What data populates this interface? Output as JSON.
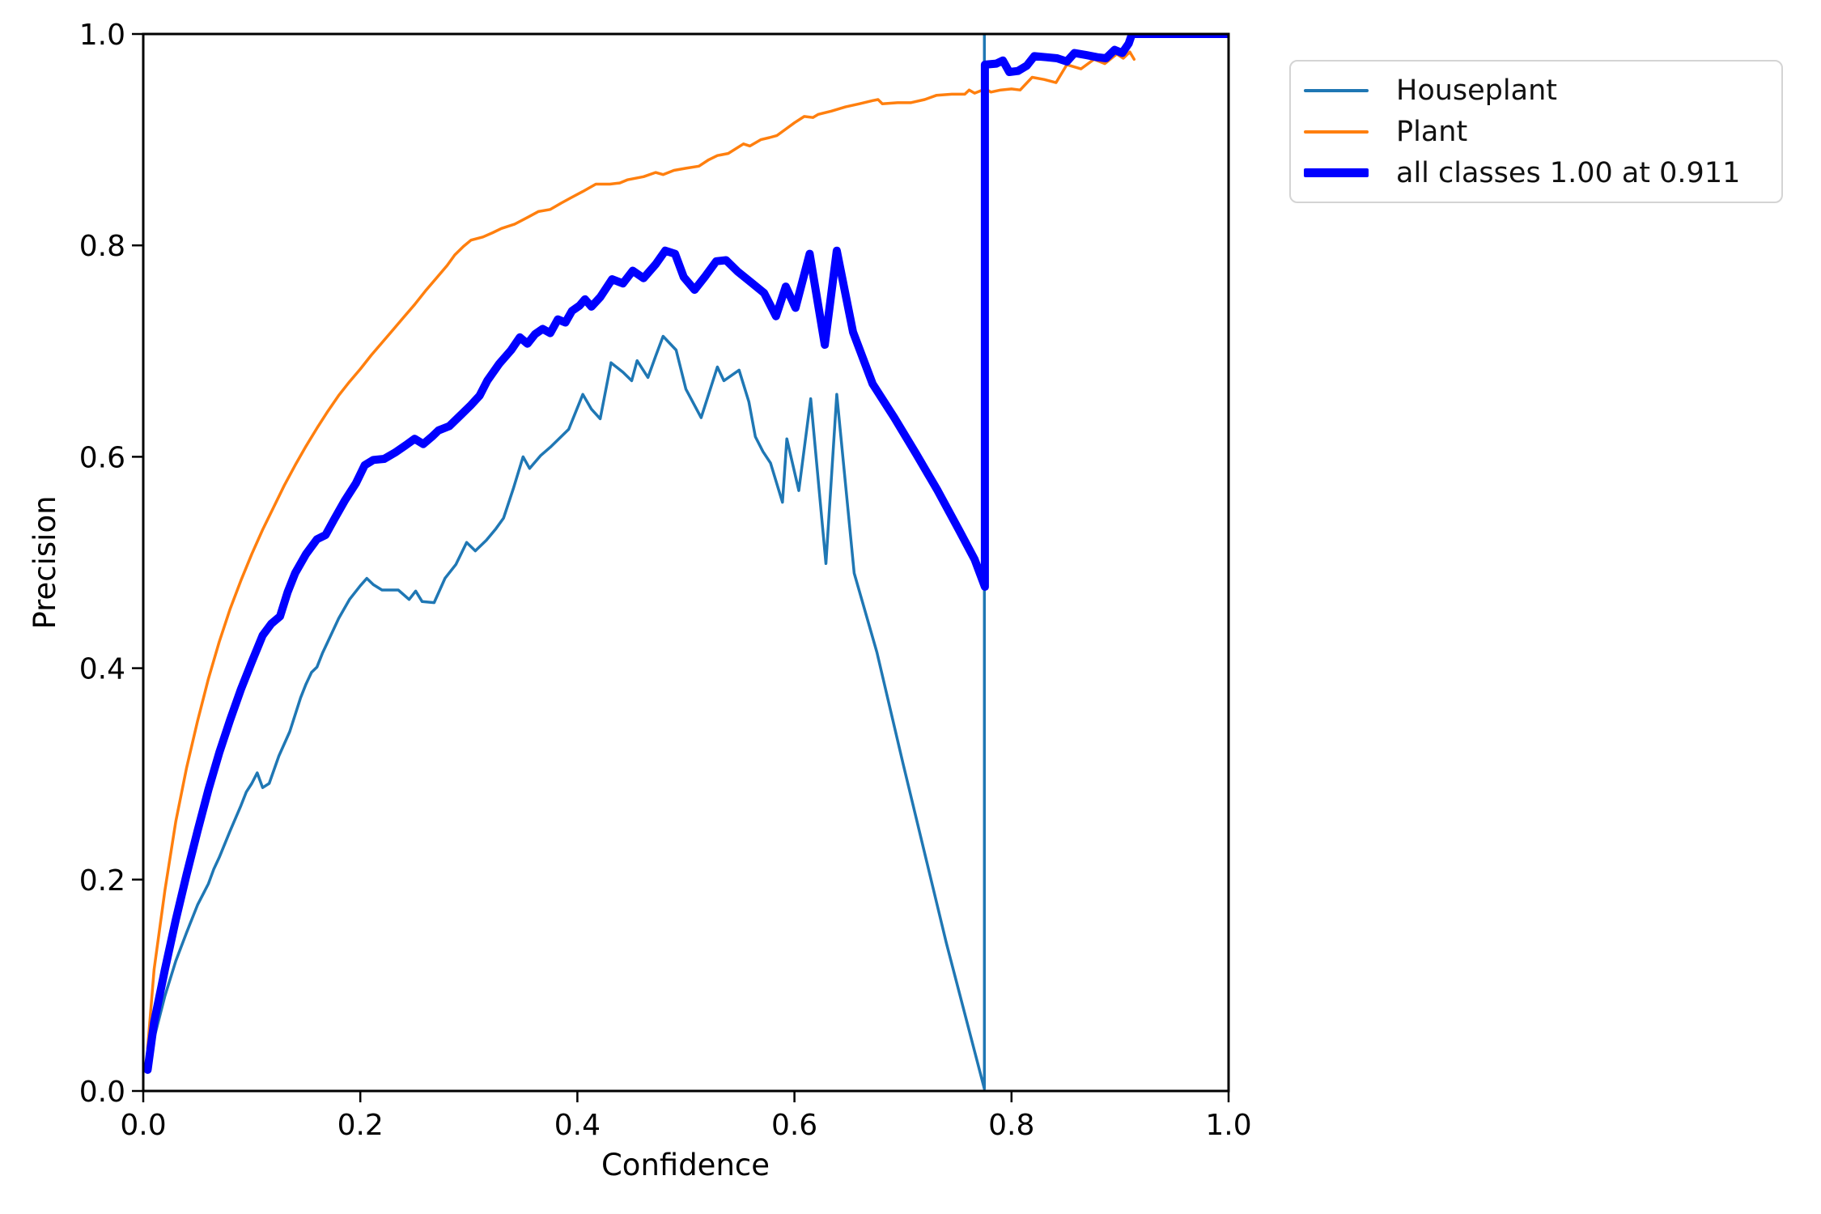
{
  "chart_data": {
    "type": "line",
    "title": "",
    "xlabel": "Confidence",
    "ylabel": "Precision",
    "xlim": [
      0.0,
      1.0
    ],
    "ylim": [
      0.0,
      1.0
    ],
    "grid": false,
    "legend_position": "outside-upper-right",
    "xticks": {
      "values": [
        0.0,
        0.2,
        0.4,
        0.6,
        0.8,
        1.0
      ],
      "labels": [
        "0.0",
        "0.2",
        "0.4",
        "0.6",
        "0.8",
        "1.0"
      ]
    },
    "yticks": {
      "values": [
        0.0,
        0.2,
        0.4,
        0.6,
        0.8,
        1.0
      ],
      "labels": [
        "0.0",
        "0.2",
        "0.4",
        "0.6",
        "0.8",
        "1.0"
      ]
    },
    "series": [
      {
        "name": "Houseplant",
        "color": "#1f77b4",
        "line_width": 3.5,
        "points": [
          [
            0.004,
            0.02
          ],
          [
            0.01,
            0.05
          ],
          [
            0.02,
            0.09
          ],
          [
            0.03,
            0.123
          ],
          [
            0.04,
            0.15
          ],
          [
            0.05,
            0.176
          ],
          [
            0.06,
            0.196
          ],
          [
            0.065,
            0.21
          ],
          [
            0.07,
            0.221
          ],
          [
            0.08,
            0.246
          ],
          [
            0.09,
            0.27
          ],
          [
            0.095,
            0.283
          ],
          [
            0.1,
            0.291
          ],
          [
            0.105,
            0.301
          ],
          [
            0.11,
            0.287
          ],
          [
            0.116,
            0.291
          ],
          [
            0.125,
            0.317
          ],
          [
            0.135,
            0.34
          ],
          [
            0.145,
            0.372
          ],
          [
            0.15,
            0.385
          ],
          [
            0.155,
            0.396
          ],
          [
            0.16,
            0.401
          ],
          [
            0.165,
            0.414
          ],
          [
            0.17,
            0.425
          ],
          [
            0.18,
            0.447
          ],
          [
            0.19,
            0.465
          ],
          [
            0.2,
            0.478
          ],
          [
            0.206,
            0.485
          ],
          [
            0.212,
            0.479
          ],
          [
            0.22,
            0.474
          ],
          [
            0.235,
            0.474
          ],
          [
            0.245,
            0.465
          ],
          [
            0.251,
            0.473
          ],
          [
            0.257,
            0.463
          ],
          [
            0.268,
            0.462
          ],
          [
            0.278,
            0.485
          ],
          [
            0.288,
            0.498
          ],
          [
            0.298,
            0.519
          ],
          [
            0.306,
            0.511
          ],
          [
            0.316,
            0.521
          ],
          [
            0.325,
            0.532
          ],
          [
            0.332,
            0.542
          ],
          [
            0.341,
            0.57
          ],
          [
            0.35,
            0.6
          ],
          [
            0.356,
            0.589
          ],
          [
            0.366,
            0.601
          ],
          [
            0.375,
            0.609
          ],
          [
            0.392,
            0.626
          ],
          [
            0.405,
            0.659
          ],
          [
            0.413,
            0.645
          ],
          [
            0.421,
            0.636
          ],
          [
            0.431,
            0.689
          ],
          [
            0.442,
            0.68
          ],
          [
            0.45,
            0.672
          ],
          [
            0.455,
            0.691
          ],
          [
            0.465,
            0.675
          ],
          [
            0.472,
            0.695
          ],
          [
            0.479,
            0.714
          ],
          [
            0.491,
            0.701
          ],
          [
            0.5,
            0.664
          ],
          [
            0.514,
            0.637
          ],
          [
            0.529,
            0.685
          ],
          [
            0.535,
            0.672
          ],
          [
            0.549,
            0.682
          ],
          [
            0.558,
            0.652
          ],
          [
            0.564,
            0.619
          ],
          [
            0.571,
            0.605
          ],
          [
            0.578,
            0.594
          ],
          [
            0.589,
            0.557
          ],
          [
            0.593,
            0.617
          ],
          [
            0.604,
            0.568
          ],
          [
            0.615,
            0.655
          ],
          [
            0.629,
            0.499
          ],
          [
            0.639,
            0.659
          ],
          [
            0.655,
            0.49
          ],
          [
            0.676,
            0.415
          ],
          [
            0.7,
            0.31
          ],
          [
            0.74,
            0.14
          ],
          [
            0.775,
            0.002
          ],
          [
            0.775,
            1.0
          ]
        ]
      },
      {
        "name": "Plant",
        "color": "#ff7f0e",
        "line_width": 3.5,
        "points": [
          [
            0.004,
            0.04
          ],
          [
            0.01,
            0.115
          ],
          [
            0.02,
            0.19
          ],
          [
            0.03,
            0.255
          ],
          [
            0.04,
            0.306
          ],
          [
            0.05,
            0.35
          ],
          [
            0.06,
            0.39
          ],
          [
            0.07,
            0.425
          ],
          [
            0.08,
            0.456
          ],
          [
            0.09,
            0.483
          ],
          [
            0.1,
            0.508
          ],
          [
            0.11,
            0.531
          ],
          [
            0.12,
            0.552
          ],
          [
            0.13,
            0.573
          ],
          [
            0.14,
            0.592
          ],
          [
            0.15,
            0.61
          ],
          [
            0.16,
            0.627
          ],
          [
            0.17,
            0.643
          ],
          [
            0.18,
            0.658
          ],
          [
            0.19,
            0.671
          ],
          [
            0.2,
            0.683
          ],
          [
            0.21,
            0.696
          ],
          [
            0.22,
            0.708
          ],
          [
            0.23,
            0.72
          ],
          [
            0.24,
            0.732
          ],
          [
            0.25,
            0.744
          ],
          [
            0.26,
            0.757
          ],
          [
            0.27,
            0.769
          ],
          [
            0.28,
            0.781
          ],
          [
            0.287,
            0.791
          ],
          [
            0.295,
            0.799
          ],
          [
            0.302,
            0.805
          ],
          [
            0.313,
            0.808
          ],
          [
            0.322,
            0.812
          ],
          [
            0.33,
            0.816
          ],
          [
            0.342,
            0.82
          ],
          [
            0.355,
            0.827
          ],
          [
            0.364,
            0.832
          ],
          [
            0.375,
            0.834
          ],
          [
            0.385,
            0.84
          ],
          [
            0.394,
            0.845
          ],
          [
            0.405,
            0.851
          ],
          [
            0.417,
            0.858
          ],
          [
            0.43,
            0.858
          ],
          [
            0.439,
            0.859
          ],
          [
            0.446,
            0.862
          ],
          [
            0.461,
            0.865
          ],
          [
            0.472,
            0.869
          ],
          [
            0.479,
            0.867
          ],
          [
            0.489,
            0.871
          ],
          [
            0.5,
            0.873
          ],
          [
            0.512,
            0.875
          ],
          [
            0.521,
            0.881
          ],
          [
            0.529,
            0.885
          ],
          [
            0.539,
            0.887
          ],
          [
            0.553,
            0.896
          ],
          [
            0.559,
            0.894
          ],
          [
            0.569,
            0.9
          ],
          [
            0.577,
            0.902
          ],
          [
            0.584,
            0.904
          ],
          [
            0.592,
            0.91
          ],
          [
            0.6,
            0.916
          ],
          [
            0.609,
            0.922
          ],
          [
            0.617,
            0.921
          ],
          [
            0.622,
            0.924
          ],
          [
            0.634,
            0.927
          ],
          [
            0.647,
            0.931
          ],
          [
            0.66,
            0.934
          ],
          [
            0.672,
            0.937
          ],
          [
            0.677,
            0.938
          ],
          [
            0.681,
            0.934
          ],
          [
            0.695,
            0.935
          ],
          [
            0.707,
            0.935
          ],
          [
            0.72,
            0.938
          ],
          [
            0.731,
            0.942
          ],
          [
            0.745,
            0.943
          ],
          [
            0.757,
            0.943
          ],
          [
            0.761,
            0.947
          ],
          [
            0.766,
            0.944
          ],
          [
            0.776,
            0.948
          ],
          [
            0.781,
            0.945
          ],
          [
            0.79,
            0.947
          ],
          [
            0.8,
            0.948
          ],
          [
            0.808,
            0.947
          ],
          [
            0.819,
            0.959
          ],
          [
            0.83,
            0.957
          ],
          [
            0.841,
            0.954
          ],
          [
            0.851,
            0.971
          ],
          [
            0.864,
            0.967
          ],
          [
            0.876,
            0.976
          ],
          [
            0.886,
            0.972
          ],
          [
            0.897,
            0.981
          ],
          [
            0.903,
            0.977
          ],
          [
            0.909,
            0.983
          ],
          [
            0.913,
            0.976
          ]
        ]
      },
      {
        "name": "all classes 1.00 at 0.911",
        "color": "#0000ff",
        "line_width": 10,
        "points": [
          [
            0.004,
            0.02
          ],
          [
            0.01,
            0.065
          ],
          [
            0.02,
            0.115
          ],
          [
            0.03,
            0.162
          ],
          [
            0.04,
            0.205
          ],
          [
            0.05,
            0.246
          ],
          [
            0.06,
            0.285
          ],
          [
            0.07,
            0.32
          ],
          [
            0.08,
            0.351
          ],
          [
            0.09,
            0.38
          ],
          [
            0.1,
            0.406
          ],
          [
            0.11,
            0.431
          ],
          [
            0.118,
            0.442
          ],
          [
            0.126,
            0.449
          ],
          [
            0.133,
            0.472
          ],
          [
            0.14,
            0.49
          ],
          [
            0.15,
            0.508
          ],
          [
            0.16,
            0.522
          ],
          [
            0.168,
            0.526
          ],
          [
            0.176,
            0.541
          ],
          [
            0.186,
            0.559
          ],
          [
            0.196,
            0.575
          ],
          [
            0.204,
            0.592
          ],
          [
            0.212,
            0.597
          ],
          [
            0.222,
            0.598
          ],
          [
            0.232,
            0.604
          ],
          [
            0.242,
            0.611
          ],
          [
            0.25,
            0.617
          ],
          [
            0.258,
            0.612
          ],
          [
            0.266,
            0.619
          ],
          [
            0.272,
            0.625
          ],
          [
            0.282,
            0.629
          ],
          [
            0.292,
            0.639
          ],
          [
            0.302,
            0.649
          ],
          [
            0.31,
            0.658
          ],
          [
            0.317,
            0.672
          ],
          [
            0.328,
            0.688
          ],
          [
            0.339,
            0.701
          ],
          [
            0.347,
            0.713
          ],
          [
            0.354,
            0.707
          ],
          [
            0.361,
            0.716
          ],
          [
            0.368,
            0.721
          ],
          [
            0.375,
            0.717
          ],
          [
            0.382,
            0.73
          ],
          [
            0.389,
            0.727
          ],
          [
            0.395,
            0.738
          ],
          [
            0.402,
            0.743
          ],
          [
            0.407,
            0.749
          ],
          [
            0.413,
            0.742
          ],
          [
            0.421,
            0.751
          ],
          [
            0.432,
            0.768
          ],
          [
            0.442,
            0.764
          ],
          [
            0.451,
            0.776
          ],
          [
            0.461,
            0.769
          ],
          [
            0.472,
            0.782
          ],
          [
            0.481,
            0.795
          ],
          [
            0.49,
            0.792
          ],
          [
            0.498,
            0.77
          ],
          [
            0.508,
            0.758
          ],
          [
            0.518,
            0.771
          ],
          [
            0.528,
            0.785
          ],
          [
            0.537,
            0.786
          ],
          [
            0.548,
            0.775
          ],
          [
            0.56,
            0.765
          ],
          [
            0.572,
            0.755
          ],
          [
            0.583,
            0.733
          ],
          [
            0.592,
            0.761
          ],
          [
            0.601,
            0.741
          ],
          [
            0.614,
            0.792
          ],
          [
            0.628,
            0.706
          ],
          [
            0.639,
            0.795
          ],
          [
            0.654,
            0.718
          ],
          [
            0.672,
            0.669
          ],
          [
            0.692,
            0.637
          ],
          [
            0.712,
            0.603
          ],
          [
            0.732,
            0.568
          ],
          [
            0.752,
            0.53
          ],
          [
            0.766,
            0.503
          ],
          [
            0.7755,
            0.477
          ],
          [
            0.7755,
            0.971
          ],
          [
            0.786,
            0.972
          ],
          [
            0.792,
            0.975
          ],
          [
            0.798,
            0.964
          ],
          [
            0.806,
            0.965
          ],
          [
            0.814,
            0.97
          ],
          [
            0.821,
            0.979
          ],
          [
            0.832,
            0.978
          ],
          [
            0.842,
            0.977
          ],
          [
            0.851,
            0.974
          ],
          [
            0.858,
            0.982
          ],
          [
            0.869,
            0.98
          ],
          [
            0.879,
            0.978
          ],
          [
            0.887,
            0.977
          ],
          [
            0.895,
            0.985
          ],
          [
            0.902,
            0.982
          ],
          [
            0.908,
            0.991
          ],
          [
            0.911,
            1.0
          ],
          [
            1.0,
            1.0
          ]
        ]
      }
    ]
  },
  "axes": {
    "xlabel": "Confidence",
    "ylabel": "Precision"
  },
  "legend": {
    "items": [
      {
        "label": "Houseplant",
        "color": "#1f77b4",
        "thickness": 4
      },
      {
        "label": "Plant",
        "color": "#ff7f0e",
        "thickness": 4
      },
      {
        "label": "all classes 1.00 at 0.911",
        "color": "#0000ff",
        "thickness": 11
      }
    ]
  },
  "colors": {
    "spine": "#000000",
    "background": "#ffffff"
  }
}
